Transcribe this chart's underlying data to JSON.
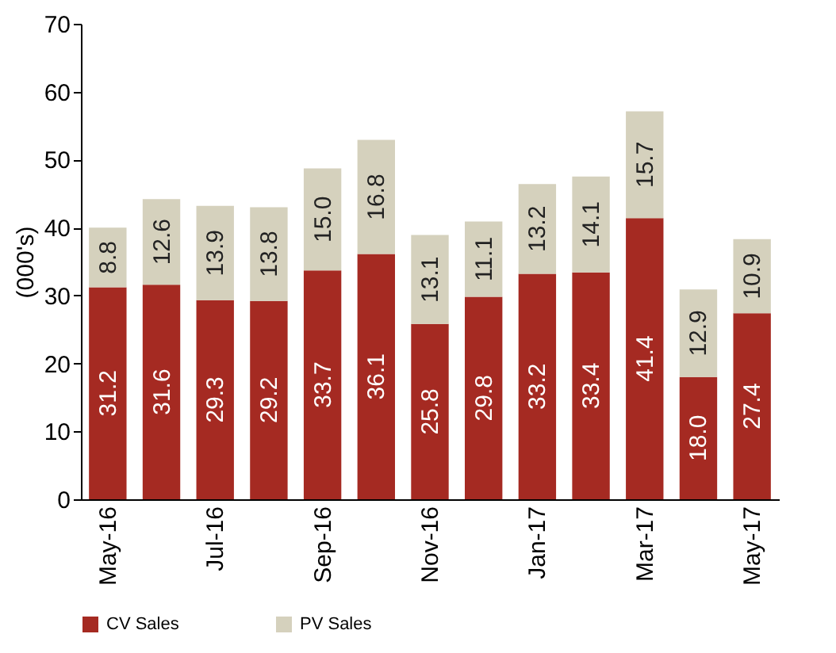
{
  "chart_data": {
    "type": "bar",
    "stacked": true,
    "ylabel": "(000's)",
    "categories": [
      "May-16",
      null,
      "Jul-16",
      null,
      "Sep-16",
      null,
      "Nov-16",
      null,
      "Jan-17",
      null,
      "Mar-17",
      null,
      "May-17"
    ],
    "series": [
      {
        "name": "CV Sales",
        "color": "#a52a22",
        "values": [
          31.2,
          31.6,
          29.3,
          29.2,
          33.7,
          36.1,
          25.8,
          29.8,
          33.2,
          33.4,
          41.4,
          18.0,
          27.4
        ],
        "value_labels": [
          "31.2",
          "31.6",
          "29.3",
          "29.2",
          "33.7",
          "36.1",
          "25.8",
          "29.8",
          "33.2",
          "33.4",
          "41.4",
          "18.0",
          "27.4"
        ]
      },
      {
        "name": "PV Sales",
        "color": "#d5d1bd",
        "values": [
          8.8,
          12.6,
          13.9,
          13.8,
          15.0,
          16.8,
          13.1,
          11.1,
          13.2,
          14.1,
          15.7,
          12.9,
          10.9
        ],
        "value_labels": [
          "8.8",
          "12.6",
          "13.9",
          "13.8",
          "15.0",
          "16.8",
          "13.1",
          "11.1",
          "13.2",
          "14.1",
          "15.7",
          "12.9",
          "10.9"
        ]
      }
    ],
    "ylim": [
      0,
      70
    ],
    "yticks": [
      0,
      10,
      20,
      30,
      40,
      50,
      60,
      70
    ],
    "grid": false,
    "legend": "bottom"
  }
}
